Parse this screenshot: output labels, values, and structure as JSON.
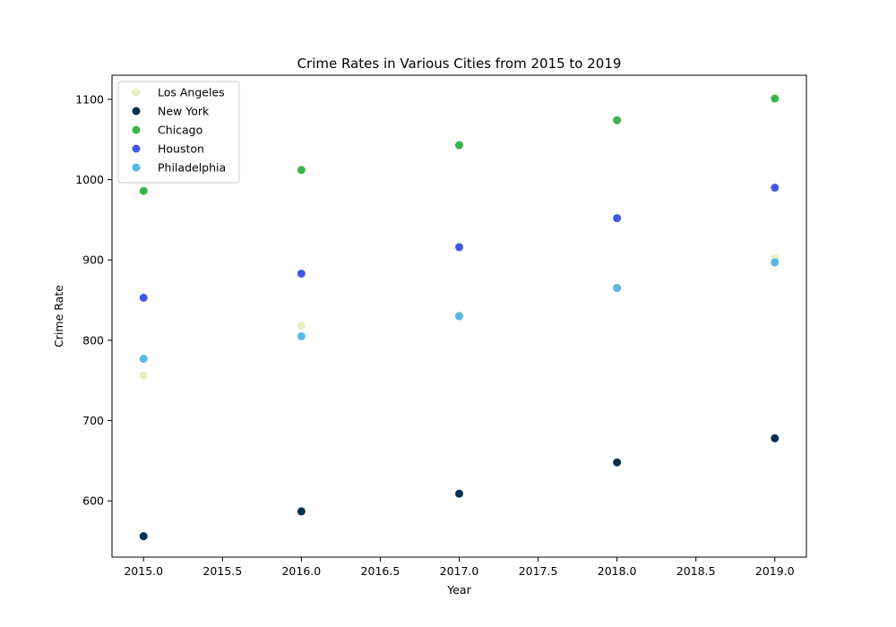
{
  "chart_data": {
    "type": "scatter",
    "title": "Crime Rates in Various Cities from 2015 to 2019",
    "xlabel": "Year",
    "ylabel": "Crime Rate",
    "xlim": [
      2014.8,
      2019.2
    ],
    "ylim": [
      530,
      1130
    ],
    "xticks": [
      2015.0,
      2015.5,
      2016.0,
      2016.5,
      2017.0,
      2017.5,
      2018.0,
      2018.5,
      2019.0
    ],
    "xtick_labels": [
      "2015.0",
      "2015.5",
      "2016.0",
      "2016.5",
      "2017.0",
      "2017.5",
      "2018.0",
      "2018.5",
      "2019.0"
    ],
    "yticks": [
      600,
      700,
      800,
      900,
      1000,
      1100
    ],
    "ytick_labels": [
      "600",
      "700",
      "800",
      "900",
      "1000",
      "1100"
    ],
    "grid": false,
    "legend_position": "upper-left",
    "x": [
      2015,
      2016,
      2017,
      2018,
      2019
    ],
    "series": [
      {
        "name": "Los Angeles",
        "color": "#e5efc1",
        "values": [
          756,
          818,
          831,
          866,
          902
        ]
      },
      {
        "name": "New York",
        "color": "#03304f",
        "values": [
          556,
          587,
          609,
          648,
          678
        ]
      },
      {
        "name": "Chicago",
        "color": "#39b54a",
        "values": [
          986,
          1012,
          1043,
          1074,
          1101
        ]
      },
      {
        "name": "Houston",
        "color": "#4355e8",
        "values": [
          853,
          883,
          916,
          952,
          990
        ]
      },
      {
        "name": "Philadelphia",
        "color": "#56b8e8",
        "values": [
          777,
          805,
          830,
          865,
          897
        ]
      }
    ]
  }
}
